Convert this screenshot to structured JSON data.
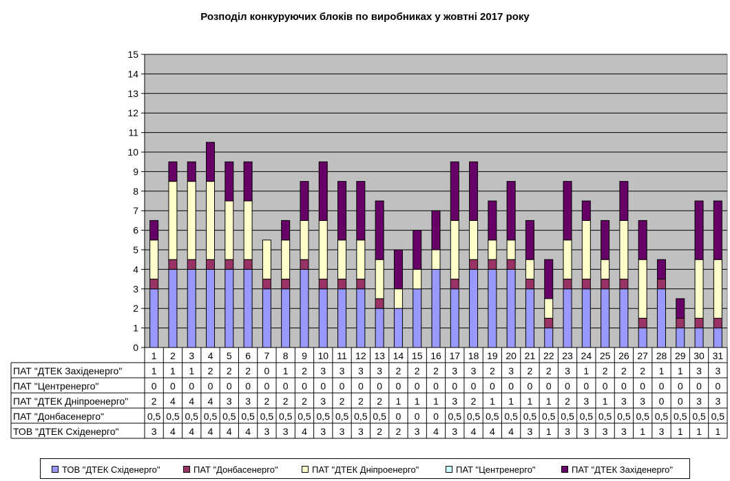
{
  "chart_data": {
    "type": "bar",
    "stacked": true,
    "title": "Розподіл конкуруючих блоків по виробниках у жовтні 2017 року",
    "xlabel": "",
    "ylabel": "",
    "ylim": [
      0,
      15
    ],
    "yticks": [
      "0",
      "1",
      "2",
      "3",
      "4",
      "5",
      "6",
      "7",
      "8",
      "9",
      "10",
      "11",
      "12",
      "13",
      "14",
      "15"
    ],
    "grid": true,
    "legend_position": "bottom",
    "categories": [
      "1",
      "2",
      "3",
      "4",
      "5",
      "6",
      "7",
      "8",
      "9",
      "10",
      "11",
      "12",
      "13",
      "14",
      "15",
      "16",
      "17",
      "18",
      "19",
      "20",
      "21",
      "22",
      "23",
      "24",
      "25",
      "26",
      "27",
      "28",
      "29",
      "30",
      "31"
    ],
    "series": [
      {
        "name": "ТОВ \"ДТЕК Східенерго\"",
        "color": "#9999ff",
        "values": [
          3,
          4,
          4,
          4,
          4,
          4,
          3,
          3,
          4,
          3,
          3,
          3,
          2,
          2,
          3,
          4,
          3,
          4,
          4,
          4,
          3,
          1,
          3,
          3,
          3,
          3,
          1,
          3,
          1,
          1,
          1
        ],
        "labels": [
          "3",
          "4",
          "4",
          "4",
          "4",
          "4",
          "3",
          "3",
          "4",
          "3",
          "3",
          "3",
          "2",
          "2",
          "3",
          "4",
          "3",
          "4",
          "4",
          "4",
          "3",
          "1",
          "3",
          "3",
          "3",
          "3",
          "1",
          "3",
          "1",
          "1",
          "1"
        ]
      },
      {
        "name": "ПАТ \"Донбасенерго\"",
        "color": "#993366",
        "values": [
          0.5,
          0.5,
          0.5,
          0.5,
          0.5,
          0.5,
          0.5,
          0.5,
          0.5,
          0.5,
          0.5,
          0.5,
          0.5,
          0,
          0,
          0,
          0.5,
          0.5,
          0.5,
          0.5,
          0.5,
          0.5,
          0.5,
          0.5,
          0.5,
          0.5,
          0.5,
          0.5,
          0.5,
          0.5,
          0.5
        ],
        "labels": [
          "0,5",
          "0,5",
          "0,5",
          "0,5",
          "0,5",
          "0,5",
          "0,5",
          "0,5",
          "0,5",
          "0,5",
          "0,5",
          "0,5",
          "0,5",
          "0",
          "0",
          "0",
          "0,5",
          "0,5",
          "0,5",
          "0,5",
          "0,5",
          "0,5",
          "0,5",
          "0,5",
          "0,5",
          "0,5",
          "0,5",
          "0,5",
          "0,5",
          "0,5",
          "0,5"
        ]
      },
      {
        "name": "ПАТ \"ДТЕК Дніпроенерго\"",
        "color": "#ffffcc",
        "values": [
          2,
          4,
          4,
          4,
          3,
          3,
          2,
          2,
          2,
          3,
          2,
          2,
          2,
          1,
          1,
          1,
          3,
          2,
          1,
          1,
          1,
          1,
          2,
          3,
          1,
          3,
          3,
          0,
          0,
          3,
          3
        ],
        "labels": [
          "2",
          "4",
          "4",
          "4",
          "3",
          "3",
          "2",
          "2",
          "2",
          "3",
          "2",
          "2",
          "2",
          "1",
          "1",
          "1",
          "3",
          "2",
          "1",
          "1",
          "1",
          "1",
          "2",
          "3",
          "1",
          "3",
          "3",
          "0",
          "0",
          "3",
          "3"
        ]
      },
      {
        "name": "ПАТ \"Центренерго\"",
        "color": "#ccffff",
        "values": [
          0,
          0,
          0,
          0,
          0,
          0,
          0,
          0,
          0,
          0,
          0,
          0,
          0,
          0,
          0,
          0,
          0,
          0,
          0,
          0,
          0,
          0,
          0,
          0,
          0,
          0,
          0,
          0,
          0,
          0,
          0
        ],
        "labels": [
          "0",
          "0",
          "0",
          "0",
          "0",
          "0",
          "0",
          "0",
          "0",
          "0",
          "0",
          "0",
          "0",
          "0",
          "0",
          "0",
          "0",
          "0",
          "0",
          "0",
          "0",
          "0",
          "0",
          "0",
          "0",
          "0",
          "0",
          "0",
          "0",
          "0",
          "0"
        ]
      },
      {
        "name": "ПАТ \"ДТЕК Західенерго\"",
        "color": "#660066",
        "values": [
          1,
          1,
          1,
          2,
          2,
          2,
          0,
          1,
          2,
          3,
          3,
          3,
          3,
          2,
          2,
          2,
          3,
          3,
          2,
          3,
          2,
          2,
          3,
          1,
          2,
          2,
          2,
          1,
          1,
          3,
          3
        ],
        "labels": [
          "1",
          "1",
          "1",
          "2",
          "2",
          "2",
          "0",
          "1",
          "2",
          "3",
          "3",
          "3",
          "3",
          "2",
          "2",
          "2",
          "3",
          "3",
          "2",
          "3",
          "2",
          "2",
          "3",
          "1",
          "2",
          "2",
          "2",
          "1",
          "1",
          "3",
          "3"
        ]
      }
    ],
    "table_row_order": [
      4,
      3,
      2,
      1,
      0
    ],
    "table_row_labels": [
      "ПАТ \"ДТЕК Західенерго\"",
      "ПАТ \"Центренерго\"",
      "ПАТ \"ДТЕК Дніпроенерго\"",
      "ПАТ \"Донбасенерго\"",
      "ТОВ \"ДТЕК Східенерго\""
    ]
  }
}
